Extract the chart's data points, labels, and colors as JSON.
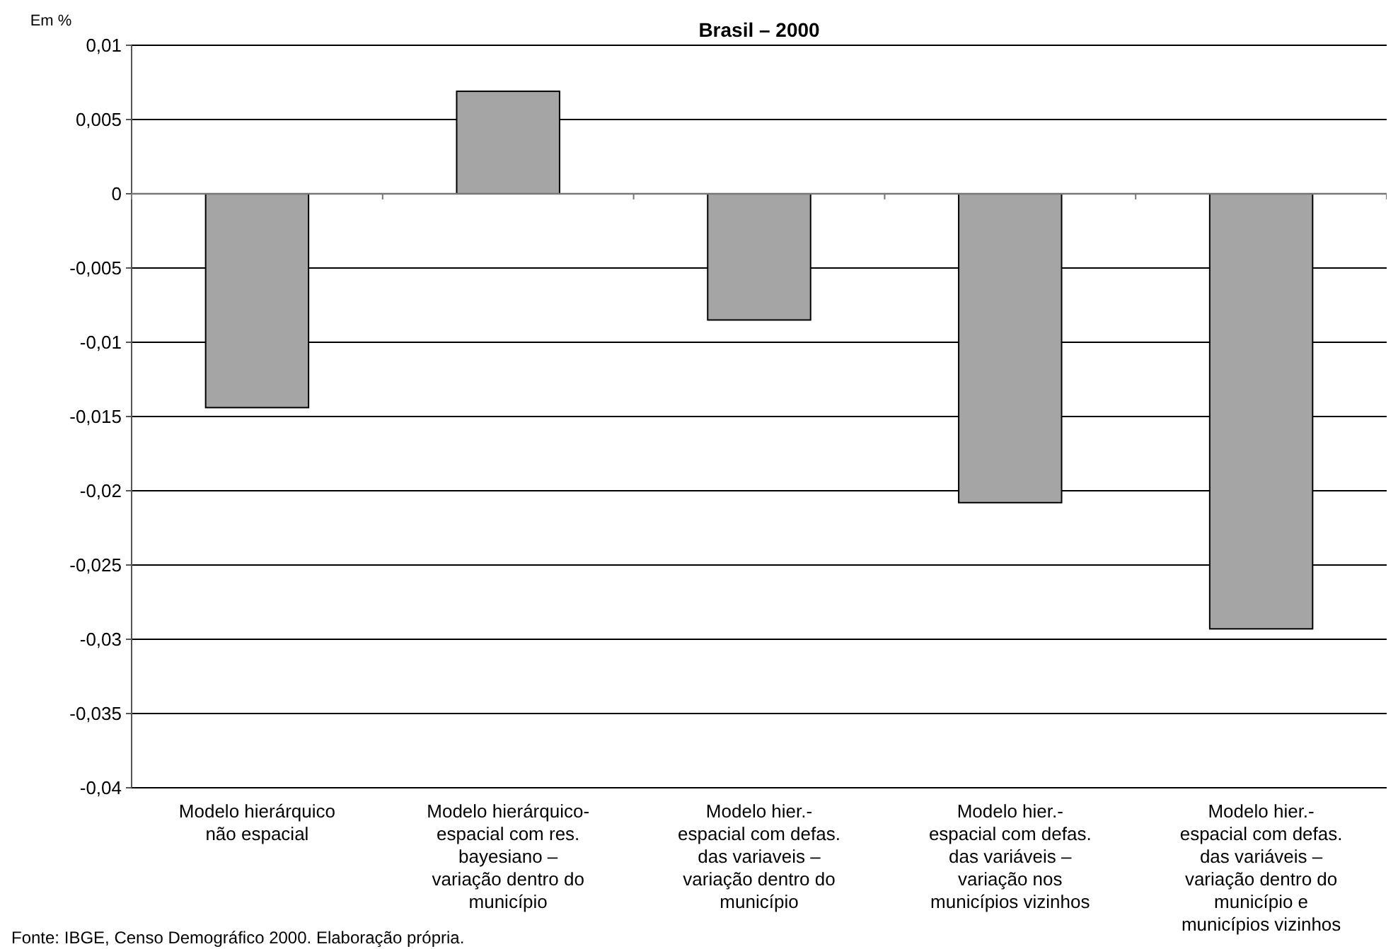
{
  "chart_data": {
    "type": "bar",
    "title": "Brasil – 2000",
    "ylabel": "Em %",
    "categories": [
      "Modelo hierárquico não espacial",
      "Modelo hierárquico-espacial com res. bayesiano – variação dentro do município",
      "Modelo hier.-espacial com defas. das variaveis – variação dentro do município",
      "Modelo hier.-espacial com defas. das variáveis – variação nos municípios vizinhos",
      "Modelo hier.-espacial com defas. das variáveis – variação dentro do município e municípios vizinhos"
    ],
    "values": [
      -0.0144,
      0.0069,
      -0.0085,
      -0.0208,
      -0.0293
    ],
    "color": "#a5a5a5",
    "ylim": [
      -0.04,
      0.01
    ],
    "yticks": [
      {
        "value": -0.04,
        "label": "-0,04"
      },
      {
        "value": -0.035,
        "label": "-0,035"
      },
      {
        "value": -0.03,
        "label": "-0,03"
      },
      {
        "value": -0.025,
        "label": "-0,025"
      },
      {
        "value": -0.02,
        "label": "-0,02"
      },
      {
        "value": -0.015,
        "label": "-0,015"
      },
      {
        "value": -0.01,
        "label": "-0,01"
      },
      {
        "value": -0.005,
        "label": "-0,005"
      },
      {
        "value": 0,
        "label": "0"
      },
      {
        "value": 0.005,
        "label": "0,005"
      },
      {
        "value": 0.01,
        "label": "0,01"
      }
    ],
    "grid": "y",
    "annotations": [
      "Fonte: IBGE, Censo Demográfico 2000. Elaboração própria."
    ]
  }
}
